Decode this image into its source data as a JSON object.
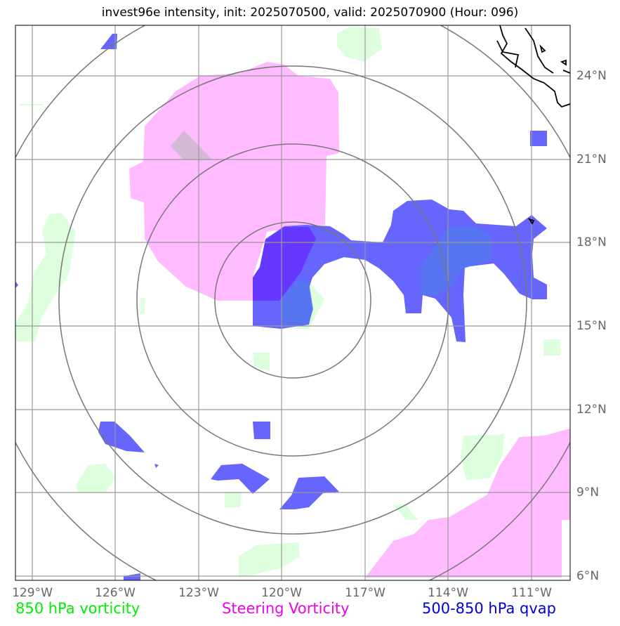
{
  "title": "invest96e intensity, init: 2025070500, valid: 2025070900 (Hour: 096)",
  "lon_labels": [
    "129°W",
    "126°W",
    "123°W",
    "120°W",
    "117°W",
    "114°W",
    "111°W"
  ],
  "lat_labels": [
    "24°N",
    "21°N",
    "18°N",
    "15°N",
    "12°N",
    "9°N",
    "6°N"
  ],
  "legend": {
    "vort850": {
      "label": "850 hPa vorticity",
      "color": "#00ee00"
    },
    "steering": {
      "label": "Steering Vorticity",
      "color": "#ee00ee"
    },
    "qvap": {
      "label": "500-850 hPa qvap",
      "color": "#0000dd"
    }
  },
  "colors": {
    "vort850_fill": "#ddffdd",
    "steering_fill": "#ffbbff",
    "qvap_fill": "#6666ff",
    "grid": "#999999",
    "rings": "#777777",
    "coast": "#000000"
  }
}
